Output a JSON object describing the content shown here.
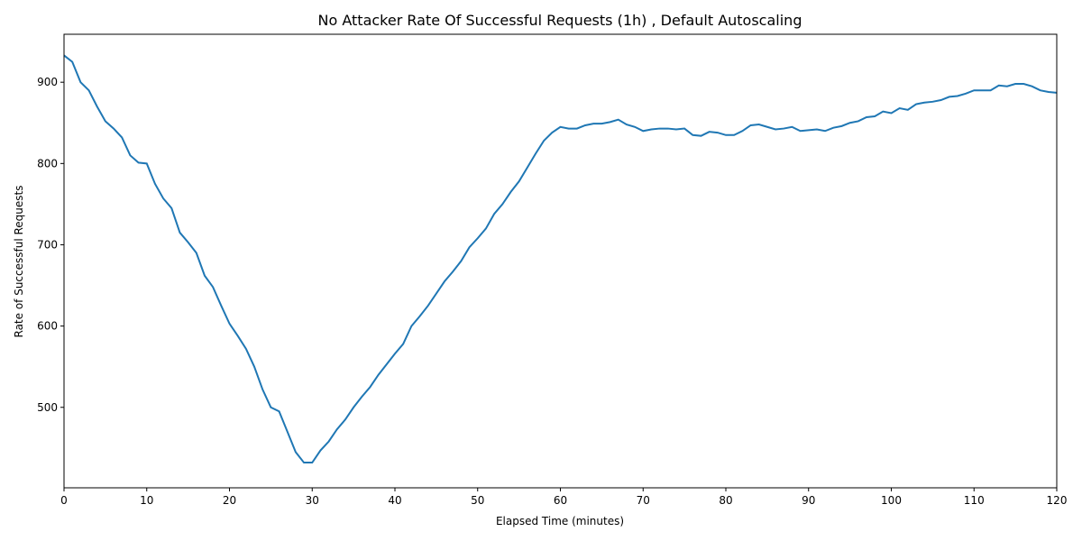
{
  "chart_data": {
    "type": "line",
    "title": "No Attacker Rate Of Successful Requests (1h) , Default Autoscaling",
    "x_label": "Elapsed Time (minutes)",
    "y_label": "Rate of Successful Requests",
    "x": [
      0,
      1,
      2,
      3,
      4,
      5,
      6,
      7,
      8,
      9,
      10,
      11,
      12,
      13,
      14,
      15,
      16,
      17,
      18,
      19,
      20,
      21,
      22,
      23,
      24,
      25,
      26,
      27,
      28,
      29,
      30,
      31,
      32,
      33,
      34,
      35,
      36,
      37,
      38,
      39,
      40,
      41,
      42,
      43,
      44,
      45,
      46,
      47,
      48,
      49,
      50,
      51,
      52,
      53,
      54,
      55,
      56,
      57,
      58,
      59,
      60,
      61,
      62,
      63,
      64,
      65,
      66,
      67,
      68,
      69,
      70,
      71,
      72,
      73,
      74,
      75,
      76,
      77,
      78,
      79,
      80,
      81,
      82,
      83,
      84,
      85,
      86,
      87,
      88,
      89,
      90,
      91,
      92,
      93,
      94,
      95,
      96,
      97,
      98,
      99,
      100,
      101,
      102,
      103,
      104,
      105,
      106,
      107,
      108,
      109,
      110,
      111,
      112,
      113,
      114,
      115,
      116,
      117,
      118,
      119,
      120
    ],
    "series": [
      {
        "name": "Rate of Successful Requests",
        "color": "#1f77b4",
        "values": [
          933,
          925,
          900,
          890,
          870,
          852,
          843,
          832,
          810,
          801,
          800,
          775,
          757,
          745,
          715,
          703,
          690,
          662,
          648,
          625,
          603,
          588,
          572,
          550,
          522,
          500,
          495,
          470,
          445,
          432,
          432,
          447,
          458,
          473,
          485,
          500,
          513,
          525,
          540,
          553,
          566,
          578,
          600,
          612,
          625,
          640,
          655,
          667,
          680,
          697,
          708,
          720,
          738,
          750,
          765,
          778,
          795,
          812,
          828,
          838,
          845,
          843,
          843,
          847,
          849,
          849,
          851,
          854,
          848,
          845,
          840,
          842,
          843,
          843,
          842,
          843,
          835,
          834,
          839,
          838,
          835,
          835,
          840,
          847,
          848,
          845,
          842,
          843,
          845,
          840,
          841,
          842,
          840,
          844,
          846,
          850,
          852,
          857,
          858,
          864,
          862,
          868,
          866,
          873,
          875,
          876,
          878,
          882,
          883,
          886,
          890,
          890,
          890,
          896,
          895,
          898,
          898,
          895,
          890,
          888,
          887
        ]
      }
    ],
    "xlim": [
      0,
      120
    ],
    "xticks": [
      0,
      10,
      20,
      30,
      40,
      50,
      60,
      70,
      80,
      90,
      100,
      110,
      120
    ],
    "ylim": [
      401,
      959
    ],
    "yticks": [
      500,
      600,
      700,
      800,
      900
    ]
  }
}
